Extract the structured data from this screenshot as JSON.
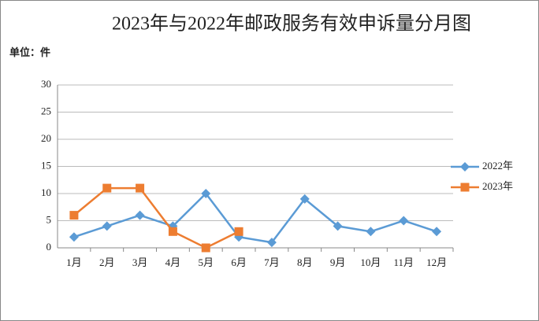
{
  "chart_data": {
    "type": "line",
    "title": "2023年与2022年邮政服务有效申诉量分月图",
    "unit_label": "单位：件",
    "categories": [
      "1月",
      "2月",
      "3月",
      "4月",
      "5月",
      "6月",
      "7月",
      "8月",
      "9月",
      "10月",
      "11月",
      "12月"
    ],
    "series": [
      {
        "name": "2022年",
        "color": "#5b9bd5",
        "marker": "diamond",
        "values": [
          2,
          4,
          6,
          4,
          10,
          2,
          1,
          9,
          4,
          3,
          5,
          3
        ]
      },
      {
        "name": "2023年",
        "color": "#ed7d31",
        "marker": "square",
        "values": [
          6,
          11,
          11,
          3,
          0,
          3,
          null,
          null,
          null,
          null,
          null,
          null
        ]
      }
    ],
    "ylim": [
      0,
      30
    ],
    "yticks": [
      0,
      5,
      10,
      15,
      20,
      25,
      30
    ],
    "grid": true,
    "legend": "right"
  }
}
